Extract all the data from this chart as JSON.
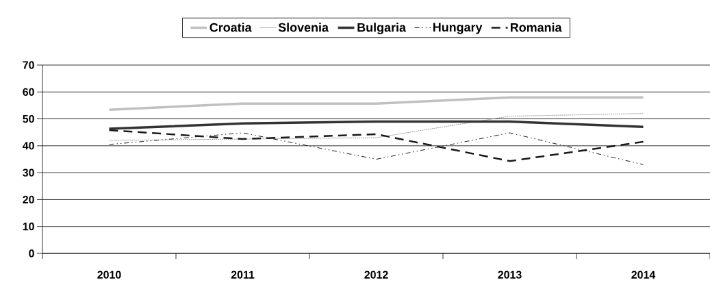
{
  "chart_data": {
    "type": "line",
    "categories": [
      "2010",
      "2011",
      "2012",
      "2013",
      "2014"
    ],
    "series": [
      {
        "name": "Croatia",
        "color": "#c0c0c0",
        "line_style": "solid",
        "values": [
          53.4,
          55.7,
          55.7,
          58,
          58
        ]
      },
      {
        "name": "Slovenia",
        "color": "#808080",
        "line_style": "dotted",
        "values": [
          42,
          42.5,
          43,
          51,
          52
        ]
      },
      {
        "name": "Bulgaria",
        "color": "#333333",
        "line_style": "solid",
        "values": [
          46.3,
          48.3,
          49,
          49,
          47
        ]
      },
      {
        "name": "Hungary",
        "color": "#1a1a1a",
        "line_style": "dashdot",
        "values": [
          40.5,
          44.8,
          35,
          44.8,
          33
        ]
      },
      {
        "name": "Romania",
        "color": "#1a1a1a",
        "line_style": "dashed",
        "values": [
          45.8,
          42.5,
          44.3,
          34.3,
          41.5
        ]
      }
    ],
    "ylim": [
      0,
      70
    ],
    "yticks": [
      0,
      10,
      20,
      30,
      40,
      50,
      60,
      70
    ],
    "grid": "y",
    "legend": "top",
    "marker": "none"
  }
}
